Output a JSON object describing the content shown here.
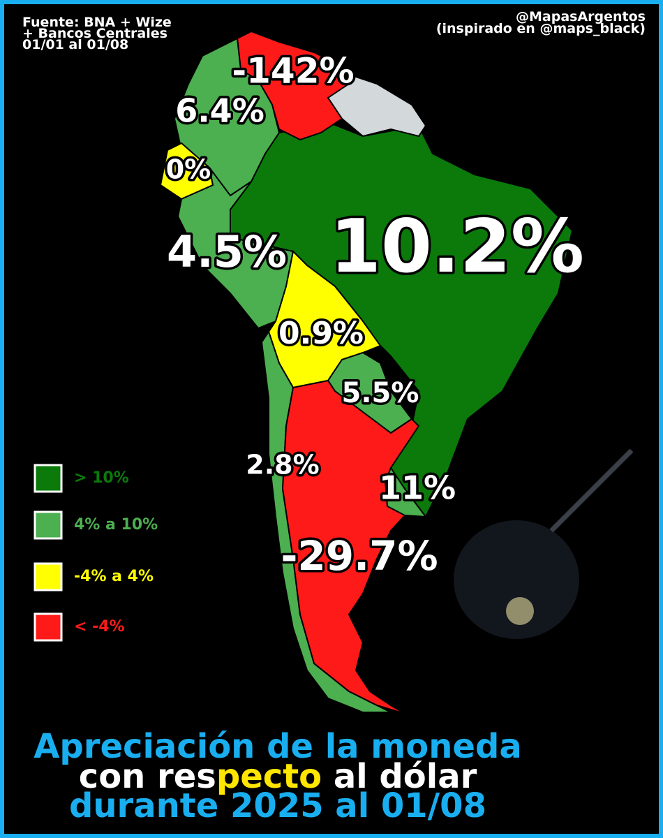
{
  "header": {
    "source": [
      "Fuente: BNA + Wize",
      "+ Bancos Centrales",
      "01/01 al 01/08"
    ],
    "credit": [
      "@MapasArgentos",
      "(inspirado en @maps_black)"
    ]
  },
  "map": {
    "labels": [
      "-142%",
      "6.4%",
      "0%",
      "4.5%",
      "10.2%",
      "0.9%",
      "5.5%",
      "2.8%",
      "11%",
      "-29.7%"
    ]
  },
  "legend": {
    "items": [
      {
        "label": "> 10%",
        "color": "#0b7a0b"
      },
      {
        "label": "4% a 10%",
        "color": "#4caf50"
      },
      {
        "label": "-4% a 4%",
        "color": "#ffff00"
      },
      {
        "label": "< -4%",
        "color": "#ff1a1a"
      }
    ]
  },
  "title": {
    "lines": [
      [
        "Apreciación de la moneda"
      ],
      [
        "con res",
        "pecto",
        " al dólar"
      ],
      [
        "durante 2025 al 01/08"
      ]
    ]
  }
}
